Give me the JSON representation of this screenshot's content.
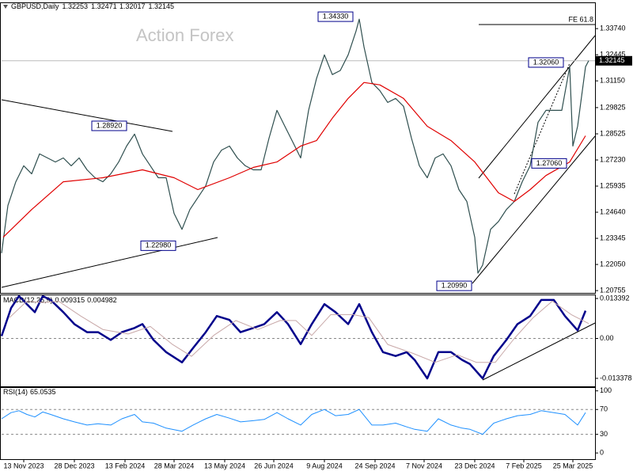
{
  "chart_data": [
    {
      "type": "line",
      "title": "GBPUSD,Daily",
      "ohlc": [
        1.32253,
        1.32471,
        1.32017,
        1.32145
      ],
      "watermark": "Action Forex",
      "fe_label": "FE 61.8",
      "last_price": 1.32145,
      "xlim": [
        0,
        375
      ],
      "ylim": [
        1.2064,
        1.3504
      ],
      "yticks": [
        {
          "value": 1.3374,
          "label": "1.33740"
        },
        1.32445,
        {
          "value": 1.3115,
          "label": "1.31150"
        },
        1.29825,
        1.28525,
        {
          "value": 1.2723,
          "label": "1.27230"
        },
        1.25935,
        {
          "value": 1.2464,
          "label": "1.24640"
        },
        1.23345,
        {
          "value": 1.2205,
          "label": "1.22050"
        },
        1.20755
      ],
      "annotations": [
        {
          "value": 1.3433,
          "label": "1.34330",
          "x": 226
        },
        {
          "value": 1.2892,
          "label": "1.28920",
          "x": 83
        },
        {
          "value": 1.2298,
          "label": "1.22980",
          "x": 114
        },
        {
          "value": 1.2099,
          "label": "1.20990",
          "x": 301
        },
        {
          "value": 1.2706,
          "label": "1.27060",
          "x": 361
        },
        {
          "value": 1.3206,
          "label": "1.32060",
          "x": 359
        }
      ],
      "series": [
        {
          "color": "#2f4f4f",
          "x": [
            0,
            4,
            9,
            14,
            19,
            24,
            29,
            34,
            39,
            44,
            49,
            54,
            59,
            64,
            69,
            74,
            79,
            84,
            89,
            94,
            99,
            104,
            109,
            114,
            119,
            124,
            129,
            134,
            139,
            144,
            149,
            154,
            159,
            164,
            169,
            174,
            179,
            184,
            189,
            194,
            199,
            204,
            209,
            214,
            219,
            224,
            226,
            229,
            234,
            239,
            244,
            249,
            254,
            259,
            264,
            269,
            274,
            279,
            284,
            289,
            294,
            299,
            301,
            304,
            309,
            314,
            319,
            324,
            329,
            334,
            339,
            344,
            349,
            354,
            359,
            361,
            364,
            369,
            371
          ],
          "values": [
            1.2261,
            1.2497,
            1.2615,
            1.2694,
            1.2654,
            1.2753,
            1.2733,
            1.2713,
            1.2733,
            1.2694,
            1.2733,
            1.2674,
            1.2635,
            1.2615,
            1.2654,
            1.2713,
            1.2792,
            1.2851,
            1.2753,
            1.2694,
            1.2635,
            1.2635,
            1.2458,
            1.2379,
            1.2477,
            1.2536,
            1.2595,
            1.2713,
            1.2772,
            1.2792,
            1.2733,
            1.2694,
            1.2674,
            1.2674,
            1.2831,
            1.2969,
            1.289,
            1.2812,
            1.2733,
            1.2969,
            1.3126,
            1.3244,
            1.3146,
            1.3166,
            1.3244,
            1.3362,
            1.3421,
            1.3284,
            1.3107,
            1.3067,
            1.3008,
            1.3028,
            1.2989,
            1.2831,
            1.2694,
            1.2635,
            1.2733,
            1.2753,
            1.2694,
            1.2576,
            1.2517,
            1.234,
            1.2162,
            1.2202,
            1.2379,
            1.2418,
            1.2477,
            1.2517,
            1.2615,
            1.2694,
            1.291,
            1.2969,
            1.2969,
            1.2969,
            1.3185,
            1.2792,
            1.289,
            1.3185,
            1.3215
          ]
        },
        {
          "color": "#e00000",
          "x": [
            1,
            19,
            39,
            64,
            89,
            109,
            124,
            144,
            159,
            174,
            189,
            199,
            209,
            219,
            229,
            239,
            254,
            269,
            284,
            299,
            314,
            324,
            334,
            344,
            359,
            369
          ],
          "values": [
            1.234,
            1.2477,
            1.2615,
            1.2635,
            1.2674,
            1.2635,
            1.2576,
            1.2635,
            1.2686,
            1.2713,
            1.2792,
            1.2819,
            1.293,
            1.3028,
            1.3107,
            1.3095,
            1.3028,
            1.289,
            1.2819,
            1.2713,
            1.256,
            1.2517,
            1.2576,
            1.2646,
            1.2713,
            1.2843
          ]
        }
      ]
    },
    {
      "type": "line",
      "title": "MACD(12,26,9)",
      "readout": [
        0.009315,
        0.004982
      ],
      "xlim": [
        0,
        375
      ],
      "ylim": [
        -0.01605,
        0.01473
      ],
      "yticks": [
        0.013392,
        {
          "value": 0,
          "label": "0.00"
        },
        -0.013378
      ],
      "levels": [
        0
      ],
      "series": [
        {
          "color": "#00008b",
          "width": 2.5,
          "x": [
            0,
            6,
            11,
            16,
            21,
            26,
            31,
            39,
            46,
            54,
            61,
            69,
            76,
            84,
            89,
            96,
            104,
            114,
            121,
            129,
            136,
            144,
            151,
            159,
            166,
            174,
            181,
            189,
            196,
            204,
            211,
            219,
            226,
            234,
            241,
            249,
            256,
            261,
            269,
            276,
            284,
            291,
            296,
            304,
            311,
            319,
            326,
            334,
            341,
            349,
            356,
            364,
            369
          ],
          "values": [
            0.0008,
            0.0102,
            0.0142,
            0.0115,
            0.0088,
            0.0142,
            0.0129,
            0.0088,
            0.0048,
            0.0021,
            0.0021,
            -0.0005,
            0.0021,
            0.0035,
            0.0048,
            -0.0005,
            -0.0046,
            -0.008,
            -0.0032,
            0.0021,
            0.0075,
            0.0062,
            0.0021,
            0.0035,
            0.0048,
            0.0088,
            0.0048,
            -0.0019,
            0.0048,
            0.0115,
            0.0088,
            0.0048,
            0.0115,
            0.0021,
            -0.0046,
            -0.0059,
            -0.0046,
            -0.0072,
            -0.0134,
            -0.0046,
            -0.0046,
            -0.0072,
            -0.0086,
            -0.0134,
            -0.0059,
            -0.0005,
            0.0048,
            0.0075,
            0.0129,
            0.0129,
            0.0075,
            0.0027,
            0.0093
          ]
        },
        {
          "color": "#c8a8a8",
          "width": 1,
          "x": [
            5,
            16,
            26,
            36,
            50,
            64,
            80,
            94,
            108,
            120,
            134,
            148,
            162,
            176,
            186,
            196,
            208,
            222,
            232,
            244,
            260,
            274,
            288,
            300,
            312,
            324,
            336,
            348,
            360,
            371
          ],
          "values": [
            0.007,
            0.0125,
            0.012,
            0.0125,
            0.0075,
            0.003,
            0.0015,
            0.004,
            -0.002,
            -0.006,
            0.001,
            0.006,
            0.003,
            0.006,
            0.006,
            0.001,
            0.008,
            0.008,
            0.007,
            -0.002,
            -0.005,
            -0.008,
            -0.0055,
            -0.008,
            -0.008,
            0,
            0.007,
            0.0125,
            0.008,
            0.005
          ]
        }
      ]
    },
    {
      "type": "line",
      "title": "RSI(14)",
      "readout": 65.0535,
      "xlim": [
        0,
        375
      ],
      "ylim": [
        -10,
        106
      ],
      "yticks": [
        100,
        70,
        30,
        0
      ],
      "levels": [
        70,
        30
      ],
      "xticks": [
        {
          "value": 14,
          "label": "13 Nov 2023"
        },
        {
          "value": 46,
          "label": "28 Dec 2023"
        },
        {
          "value": 78,
          "label": "13 Feb 2024"
        },
        {
          "value": 109,
          "label": "28 Mar 2024"
        },
        {
          "value": 141,
          "label": "13 May 2024"
        },
        {
          "value": 172,
          "label": "26 Jun 2024"
        },
        {
          "value": 204,
          "label": "9 Aug 2024"
        },
        {
          "value": 236,
          "label": "24 Sep 2024"
        },
        {
          "value": 267,
          "label": "7 Nov 2024"
        },
        {
          "value": 299,
          "label": "23 Dec 2024"
        },
        {
          "value": 330,
          "label": "7 Feb 2025"
        },
        {
          "value": 361,
          "label": "25 Mar 2025"
        }
      ],
      "series": [
        {
          "color": "#1e90ff",
          "width": 1,
          "x": [
            0,
            6,
            11,
            16,
            21,
            26,
            31,
            39,
            46,
            54,
            61,
            69,
            76,
            84,
            89,
            96,
            104,
            114,
            121,
            129,
            136,
            144,
            151,
            159,
            166,
            174,
            181,
            189,
            196,
            204,
            211,
            219,
            226,
            234,
            241,
            249,
            256,
            261,
            269,
            276,
            284,
            291,
            296,
            304,
            311,
            319,
            326,
            334,
            341,
            349,
            356,
            364,
            369
          ],
          "values": [
            55,
            65,
            68,
            62,
            58,
            66,
            62,
            55,
            50,
            45,
            47,
            45,
            55,
            62,
            50,
            48,
            40,
            35,
            45,
            55,
            62,
            56,
            50,
            52,
            54,
            65,
            55,
            45,
            62,
            70,
            60,
            62,
            70,
            45,
            45,
            48,
            42,
            38,
            35,
            55,
            45,
            40,
            38,
            30,
            48,
            55,
            60,
            62,
            68,
            65,
            62,
            45,
            65
          ]
        }
      ]
    }
  ]
}
